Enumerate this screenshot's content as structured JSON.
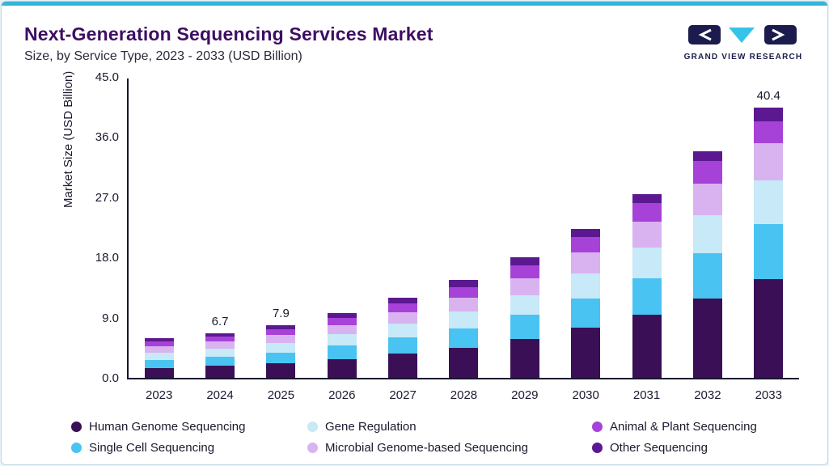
{
  "page": {
    "title": "Next-Generation Sequencing Services Market",
    "subtitle": "Size, by Service Type, 2023 - 2033 (USD Billion)"
  },
  "logo": {
    "text": "GRAND VIEW RESEARCH",
    "navy": "#1b1b4d",
    "teal": "#35c4e8"
  },
  "chart_data": {
    "type": "bar",
    "stacked": true,
    "title": "Next-Generation Sequencing Services Market Size, by Service Type, 2023 - 2033 (USD Billion)",
    "ylabel": "Market Size (USD Billion)",
    "ylim": [
      0,
      45
    ],
    "yticks": [
      "0.0",
      "9.0",
      "18.0",
      "27.0",
      "36.0",
      "45.0"
    ],
    "grid": false,
    "legend_position": "bottom",
    "categories": [
      "2023",
      "2024",
      "2025",
      "2026",
      "2027",
      "2028",
      "2029",
      "2030",
      "2031",
      "2032",
      "2033"
    ],
    "series": [
      {
        "name": "Human Genome Sequencing",
        "color": "#3a0f55",
        "values": [
          1.5,
          1.8,
          2.2,
          2.8,
          3.6,
          4.5,
          5.8,
          7.5,
          9.4,
          11.8,
          14.8
        ]
      },
      {
        "name": "Single Cell Sequencing",
        "color": "#49c3f2",
        "values": [
          1.2,
          1.4,
          1.6,
          2.0,
          2.4,
          2.9,
          3.6,
          4.4,
          5.5,
          6.8,
          8.2
        ]
      },
      {
        "name": "Gene Regulation",
        "color": "#c7e9f8",
        "values": [
          1.1,
          1.2,
          1.4,
          1.7,
          2.1,
          2.5,
          3.0,
          3.7,
          4.6,
          5.7,
          6.5
        ]
      },
      {
        "name": "Microbial Genome-based Sequencing",
        "color": "#d9b3f0",
        "values": [
          0.9,
          1.0,
          1.2,
          1.4,
          1.7,
          2.1,
          2.5,
          3.1,
          3.8,
          4.7,
          5.6
        ]
      },
      {
        "name": "Animal & Plant Sequencing",
        "color": "#a742d8",
        "values": [
          0.7,
          0.8,
          0.9,
          1.1,
          1.3,
          1.6,
          1.9,
          2.3,
          2.8,
          3.4,
          3.3
        ]
      },
      {
        "name": "Other Sequencing",
        "color": "#5c1890",
        "values": [
          0.5,
          0.5,
          0.6,
          0.7,
          0.9,
          1.1,
          1.2,
          1.3,
          1.4,
          1.5,
          2.0
        ]
      }
    ],
    "bar_labels": {
      "2024": "6.7",
      "2025": "7.9",
      "2033": "40.4"
    },
    "legend": [
      {
        "label": "Human Genome Sequencing",
        "color": "#3a0f55"
      },
      {
        "label": "Gene Regulation",
        "color": "#c7e9f8"
      },
      {
        "label": "Animal & Plant Sequencing",
        "color": "#a742d8"
      },
      {
        "label": "Single Cell Sequencing",
        "color": "#49c3f2"
      },
      {
        "label": "Microbial Genome-based Sequencing",
        "color": "#d9b3f0"
      },
      {
        "label": "Other Sequencing",
        "color": "#5c1890"
      }
    ]
  }
}
